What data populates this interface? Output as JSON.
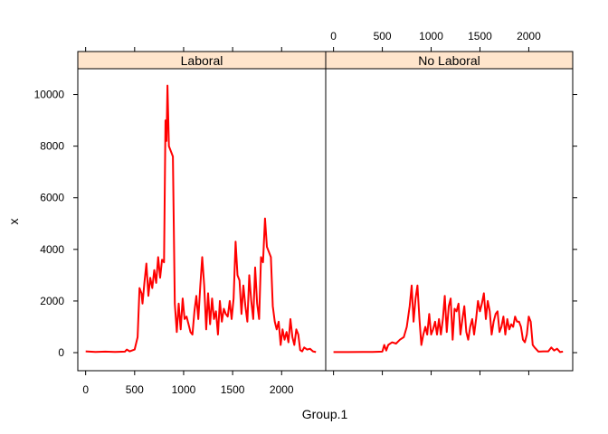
{
  "chart_data": {
    "type": "line",
    "xlabel": "Group.1",
    "ylabel": "x",
    "xlim": [
      -80,
      2450
    ],
    "ylim": [
      -700,
      11000
    ],
    "x_ticks": [
      0,
      500,
      1000,
      1500,
      2000
    ],
    "y_ticks": [
      0,
      2000,
      4000,
      6000,
      8000,
      10000
    ],
    "line_color": "#ff0000",
    "strip_color": "#ffe5cc",
    "panels": [
      {
        "strip": "Laboral",
        "points": [
          [
            0,
            50
          ],
          [
            100,
            30
          ],
          [
            200,
            40
          ],
          [
            300,
            30
          ],
          [
            400,
            40
          ],
          [
            420,
            120
          ],
          [
            450,
            50
          ],
          [
            500,
            120
          ],
          [
            530,
            600
          ],
          [
            550,
            2500
          ],
          [
            570,
            2300
          ],
          [
            580,
            1900
          ],
          [
            600,
            2700
          ],
          [
            620,
            3450
          ],
          [
            640,
            2200
          ],
          [
            660,
            2900
          ],
          [
            680,
            2500
          ],
          [
            700,
            3200
          ],
          [
            720,
            2700
          ],
          [
            740,
            3700
          ],
          [
            760,
            2900
          ],
          [
            780,
            3600
          ],
          [
            800,
            3500
          ],
          [
            815,
            9000
          ],
          [
            825,
            8200
          ],
          [
            835,
            10350
          ],
          [
            850,
            8000
          ],
          [
            870,
            7800
          ],
          [
            890,
            7600
          ],
          [
            910,
            1900
          ],
          [
            930,
            800
          ],
          [
            950,
            1900
          ],
          [
            970,
            900
          ],
          [
            990,
            2100
          ],
          [
            1010,
            1300
          ],
          [
            1030,
            1400
          ],
          [
            1050,
            1100
          ],
          [
            1070,
            800
          ],
          [
            1090,
            700
          ],
          [
            1110,
            1600
          ],
          [
            1130,
            2200
          ],
          [
            1150,
            1300
          ],
          [
            1170,
            2600
          ],
          [
            1190,
            3700
          ],
          [
            1210,
            2600
          ],
          [
            1230,
            900
          ],
          [
            1250,
            2300
          ],
          [
            1270,
            1100
          ],
          [
            1290,
            2100
          ],
          [
            1310,
            1300
          ],
          [
            1330,
            1600
          ],
          [
            1350,
            700
          ],
          [
            1370,
            2000
          ],
          [
            1390,
            1200
          ],
          [
            1410,
            1700
          ],
          [
            1430,
            1500
          ],
          [
            1450,
            1400
          ],
          [
            1470,
            2000
          ],
          [
            1490,
            1300
          ],
          [
            1510,
            2100
          ],
          [
            1530,
            4300
          ],
          [
            1550,
            3000
          ],
          [
            1570,
            2800
          ],
          [
            1590,
            1500
          ],
          [
            1610,
            2600
          ],
          [
            1630,
            1800
          ],
          [
            1650,
            1200
          ],
          [
            1670,
            3000
          ],
          [
            1690,
            2000
          ],
          [
            1710,
            1300
          ],
          [
            1730,
            3300
          ],
          [
            1750,
            1900
          ],
          [
            1770,
            1300
          ],
          [
            1790,
            3700
          ],
          [
            1810,
            3500
          ],
          [
            1830,
            5200
          ],
          [
            1850,
            4100
          ],
          [
            1870,
            3900
          ],
          [
            1890,
            3700
          ],
          [
            1910,
            1800
          ],
          [
            1930,
            1200
          ],
          [
            1950,
            900
          ],
          [
            1970,
            1200
          ],
          [
            1990,
            300
          ],
          [
            2010,
            900
          ],
          [
            2030,
            500
          ],
          [
            2050,
            800
          ],
          [
            2070,
            400
          ],
          [
            2090,
            1300
          ],
          [
            2110,
            600
          ],
          [
            2130,
            300
          ],
          [
            2150,
            900
          ],
          [
            2170,
            700
          ],
          [
            2190,
            100
          ],
          [
            2210,
            50
          ],
          [
            2230,
            200
          ],
          [
            2260,
            120
          ],
          [
            2290,
            150
          ],
          [
            2320,
            50
          ],
          [
            2350,
            20
          ]
        ]
      },
      {
        "strip": "No Laboral",
        "points": [
          [
            0,
            20
          ],
          [
            150,
            20
          ],
          [
            300,
            30
          ],
          [
            400,
            30
          ],
          [
            500,
            40
          ],
          [
            520,
            300
          ],
          [
            540,
            80
          ],
          [
            560,
            300
          ],
          [
            600,
            400
          ],
          [
            640,
            350
          ],
          [
            680,
            500
          ],
          [
            720,
            600
          ],
          [
            750,
            1000
          ],
          [
            780,
            1800
          ],
          [
            800,
            2600
          ],
          [
            820,
            1200
          ],
          [
            840,
            2100
          ],
          [
            860,
            2600
          ],
          [
            880,
            1300
          ],
          [
            900,
            300
          ],
          [
            920,
            700
          ],
          [
            940,
            1000
          ],
          [
            960,
            700
          ],
          [
            980,
            1500
          ],
          [
            1000,
            700
          ],
          [
            1020,
            900
          ],
          [
            1040,
            1200
          ],
          [
            1060,
            700
          ],
          [
            1080,
            1300
          ],
          [
            1100,
            700
          ],
          [
            1120,
            1300
          ],
          [
            1140,
            2200
          ],
          [
            1160,
            800
          ],
          [
            1180,
            1800
          ],
          [
            1200,
            2100
          ],
          [
            1220,
            500
          ],
          [
            1240,
            1700
          ],
          [
            1260,
            1600
          ],
          [
            1280,
            1900
          ],
          [
            1300,
            700
          ],
          [
            1320,
            1300
          ],
          [
            1340,
            1800
          ],
          [
            1360,
            800
          ],
          [
            1380,
            500
          ],
          [
            1400,
            1000
          ],
          [
            1420,
            1300
          ],
          [
            1440,
            700
          ],
          [
            1460,
            1300
          ],
          [
            1480,
            2000
          ],
          [
            1500,
            1600
          ],
          [
            1520,
            1900
          ],
          [
            1540,
            2300
          ],
          [
            1560,
            1300
          ],
          [
            1580,
            2000
          ],
          [
            1600,
            1600
          ],
          [
            1620,
            700
          ],
          [
            1640,
            1200
          ],
          [
            1660,
            1500
          ],
          [
            1680,
            1600
          ],
          [
            1700,
            800
          ],
          [
            1720,
            1000
          ],
          [
            1740,
            1400
          ],
          [
            1760,
            700
          ],
          [
            1780,
            1300
          ],
          [
            1800,
            900
          ],
          [
            1820,
            1100
          ],
          [
            1840,
            1000
          ],
          [
            1860,
            1400
          ],
          [
            1880,
            1200
          ],
          [
            1900,
            1200
          ],
          [
            1920,
            1000
          ],
          [
            1940,
            500
          ],
          [
            1960,
            400
          ],
          [
            1980,
            700
          ],
          [
            2000,
            1400
          ],
          [
            2020,
            1200
          ],
          [
            2040,
            300
          ],
          [
            2060,
            200
          ],
          [
            2100,
            40
          ],
          [
            2150,
            50
          ],
          [
            2200,
            50
          ],
          [
            2230,
            200
          ],
          [
            2260,
            80
          ],
          [
            2290,
            150
          ],
          [
            2320,
            20
          ],
          [
            2350,
            40
          ]
        ]
      }
    ]
  }
}
